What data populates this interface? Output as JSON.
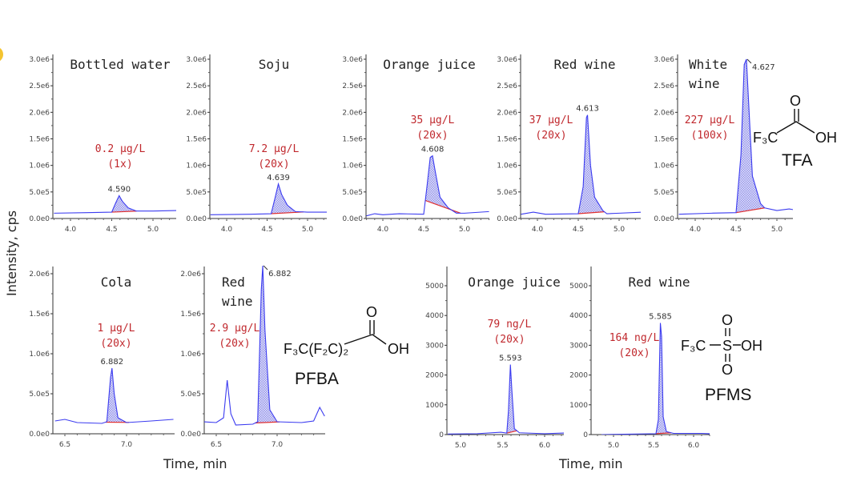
{
  "chart_data": [
    {
      "type": "line",
      "compound": "TFA",
      "title": "Bottled water",
      "concentration": "0.2 µg/L",
      "dilution": "(1x)",
      "peak_label": "4.590",
      "ylim": [
        0,
        3000000
      ],
      "yticks": [
        "0.0e0",
        "5.0e5",
        "1.0e6",
        "1.5e6",
        "2.0e6",
        "2.5e6",
        "3.0e6"
      ],
      "xticks": [
        "4.0",
        "4.5",
        "5.0"
      ],
      "trace": [
        [
          3.8,
          100000
        ],
        [
          4.2,
          110000
        ],
        [
          4.5,
          120000
        ],
        [
          4.55,
          300000
        ],
        [
          4.59,
          430000
        ],
        [
          4.63,
          320000
        ],
        [
          4.7,
          200000
        ],
        [
          4.8,
          140000
        ],
        [
          5.0,
          140000
        ],
        [
          5.3,
          150000
        ]
      ],
      "integration": [
        4.5,
        4.8
      ]
    },
    {
      "type": "line",
      "compound": "TFA",
      "title": "Soju",
      "concentration": "7.2 µg/L",
      "dilution": "(20x)",
      "peak_label": "4.639",
      "ylim": [
        0,
        3000000
      ],
      "yticks": [
        "0.0e0",
        "5.0e5",
        "1.0e6",
        "1.5e6",
        "2.0e6",
        "2.5e6",
        "3.0e6"
      ],
      "xticks": [
        "4.0",
        "4.5",
        "5.0"
      ],
      "trace": [
        [
          3.8,
          70000
        ],
        [
          4.3,
          80000
        ],
        [
          4.55,
          90000
        ],
        [
          4.6,
          400000
        ],
        [
          4.639,
          650000
        ],
        [
          4.68,
          450000
        ],
        [
          4.75,
          250000
        ],
        [
          4.85,
          130000
        ],
        [
          5.0,
          120000
        ],
        [
          5.35,
          120000
        ]
      ],
      "integration": [
        4.55,
        4.95
      ]
    },
    {
      "type": "line",
      "compound": "TFA",
      "title": "Orange juice",
      "concentration": "35 µg/L",
      "dilution": "(20x)",
      "peak_label": "4.608",
      "ylim": [
        0,
        3000000
      ],
      "yticks": [
        "0.0e0",
        "5.0e5",
        "1.0e6",
        "1.5e6",
        "2.0e6",
        "2.5e6",
        "3.0e6"
      ],
      "xticks": [
        "4.0",
        "4.5",
        "5.0"
      ],
      "trace": [
        [
          3.8,
          50000
        ],
        [
          3.9,
          90000
        ],
        [
          4.0,
          70000
        ],
        [
          4.2,
          90000
        ],
        [
          4.5,
          80000
        ],
        [
          4.54,
          600000
        ],
        [
          4.58,
          1150000
        ],
        [
          4.608,
          1180000
        ],
        [
          4.64,
          900000
        ],
        [
          4.7,
          400000
        ],
        [
          4.8,
          200000
        ],
        [
          4.9,
          100000
        ],
        [
          5.0,
          100000
        ],
        [
          5.3,
          130000
        ]
      ],
      "integration": [
        4.52,
        4.95
      ]
    },
    {
      "type": "line",
      "compound": "TFA",
      "title": "Red wine",
      "concentration": "37 µg/L",
      "dilution": "(20x)",
      "peak_label": "4.613",
      "ylim": [
        0,
        3000000
      ],
      "yticks": [
        "0.0e0",
        "5.0e5",
        "1.0e6",
        "1.5e6",
        "2.0e6",
        "2.5e6",
        "3.0e6"
      ],
      "xticks": [
        "4.0",
        "4.5",
        "5.0"
      ],
      "trace": [
        [
          3.8,
          80000
        ],
        [
          3.95,
          120000
        ],
        [
          4.1,
          80000
        ],
        [
          4.5,
          90000
        ],
        [
          4.56,
          600000
        ],
        [
          4.6,
          1900000
        ],
        [
          4.613,
          1950000
        ],
        [
          4.65,
          1000000
        ],
        [
          4.7,
          400000
        ],
        [
          4.8,
          150000
        ],
        [
          4.85,
          90000
        ],
        [
          5.0,
          100000
        ],
        [
          5.3,
          120000
        ]
      ],
      "integration": [
        4.5,
        4.82
      ]
    },
    {
      "type": "line",
      "compound": "TFA",
      "title": "White",
      "title2": "wine",
      "concentration": "227 µg/L",
      "dilution": "(100x)",
      "peak_label": "4.627",
      "ylim": [
        0,
        3000000
      ],
      "yticks": [
        "0.0e0",
        "5.0e5",
        "1.0e6",
        "1.5e6",
        "2.0e6",
        "2.5e6",
        "3.0e6"
      ],
      "xticks": [
        "4.0",
        "4.5",
        "5.0"
      ],
      "trace": [
        [
          3.8,
          80000
        ],
        [
          4.2,
          100000
        ],
        [
          4.5,
          110000
        ],
        [
          4.56,
          1200000
        ],
        [
          4.6,
          2900000
        ],
        [
          4.627,
          3000000
        ],
        [
          4.66,
          2000000
        ],
        [
          4.7,
          800000
        ],
        [
          4.8,
          280000
        ],
        [
          4.85,
          200000
        ],
        [
          5.0,
          150000
        ],
        [
          5.15,
          180000
        ],
        [
          5.3,
          140000
        ]
      ],
      "integration": [
        4.5,
        4.85
      ]
    },
    {
      "type": "line",
      "compound": "PFBA",
      "title": "Cola",
      "concentration": "1 µg/L",
      "dilution": "(20x)",
      "peak_label": "6.882",
      "ylim": [
        0,
        2000000
      ],
      "yticks": [
        "0.0e0",
        "5.0e5",
        "1.0e6",
        "1.5e6",
        "2.0e6"
      ],
      "xticks": [
        "6.5",
        "7.0"
      ],
      "trace": [
        [
          6.42,
          160000
        ],
        [
          6.5,
          180000
        ],
        [
          6.6,
          140000
        ],
        [
          6.8,
          130000
        ],
        [
          6.84,
          150000
        ],
        [
          6.87,
          700000
        ],
        [
          6.882,
          820000
        ],
        [
          6.9,
          500000
        ],
        [
          6.93,
          200000
        ],
        [
          7.0,
          140000
        ],
        [
          7.2,
          160000
        ],
        [
          7.38,
          180000
        ]
      ],
      "integration": [
        6.83,
        7.02
      ]
    },
    {
      "type": "line",
      "compound": "PFBA",
      "title": "Red",
      "title2": "wine",
      "concentration": "2.9 µg/L",
      "dilution": "(20x)",
      "peak_label": "6.882",
      "ylim": [
        0,
        2000000
      ],
      "yticks": [
        "0.0e0",
        "5.0e5",
        "1.0e6",
        "1.5e6",
        "2.0e6"
      ],
      "xticks": [
        "6.5",
        "7.0"
      ],
      "trace": [
        [
          6.4,
          150000
        ],
        [
          6.5,
          140000
        ],
        [
          6.56,
          200000
        ],
        [
          6.59,
          670000
        ],
        [
          6.62,
          250000
        ],
        [
          6.66,
          110000
        ],
        [
          6.8,
          120000
        ],
        [
          6.84,
          150000
        ],
        [
          6.87,
          1800000
        ],
        [
          6.882,
          2100000
        ],
        [
          6.9,
          1300000
        ],
        [
          6.94,
          300000
        ],
        [
          7.0,
          150000
        ],
        [
          7.2,
          140000
        ],
        [
          7.3,
          160000
        ],
        [
          7.35,
          330000
        ],
        [
          7.39,
          220000
        ]
      ],
      "integration": [
        6.82,
        7.02
      ]
    },
    {
      "type": "line",
      "compound": "PFMS",
      "title": "Orange juice",
      "concentration": "79 ng/L",
      "dilution": "(20x)",
      "peak_label": "5.593",
      "ylim": [
        0,
        5000
      ],
      "yticks": [
        "0",
        "1000",
        "2000",
        "3000",
        "4000",
        "5000"
      ],
      "xticks": [
        "5.0",
        "5.5",
        "6.0"
      ],
      "trace": [
        [
          4.85,
          20
        ],
        [
          5.2,
          30
        ],
        [
          5.48,
          80
        ],
        [
          5.55,
          50
        ],
        [
          5.57,
          800
        ],
        [
          5.593,
          2350
        ],
        [
          5.61,
          1500
        ],
        [
          5.64,
          200
        ],
        [
          5.7,
          60
        ],
        [
          6.0,
          30
        ],
        [
          6.3,
          60
        ],
        [
          6.35,
          20
        ]
      ],
      "integration": [
        5.55,
        5.67
      ]
    },
    {
      "type": "line",
      "compound": "PFMS",
      "title": "Red wine",
      "concentration": "164 ng/L",
      "dilution": "(20x)",
      "peak_label": "5.585",
      "ylim": [
        0,
        5000
      ],
      "yticks": [
        "0",
        "1000",
        "2000",
        "3000",
        "4000",
        "5000"
      ],
      "xticks": [
        "5.0",
        "5.5",
        "6.0"
      ],
      "trace": [
        [
          4.85,
          0
        ],
        [
          5.3,
          20
        ],
        [
          5.53,
          30
        ],
        [
          5.56,
          500
        ],
        [
          5.585,
          3750
        ],
        [
          5.6,
          3300
        ],
        [
          5.62,
          600
        ],
        [
          5.66,
          100
        ],
        [
          5.75,
          40
        ],
        [
          6.1,
          40
        ],
        [
          6.35,
          10
        ]
      ],
      "integration": [
        5.53,
        5.72
      ]
    }
  ],
  "axes": {
    "ylabel": "Intensity, cps",
    "xlabel": "Time, min"
  },
  "compounds": {
    "tfa": {
      "name": "TFA",
      "group": "F₃C",
      "o": "O",
      "oh": "OH"
    },
    "pfba": {
      "name": "PFBA",
      "group": "F₃C(F₂C)₂",
      "o": "O",
      "oh": "OH"
    },
    "pfms": {
      "name": "PFMS",
      "group": "F₃C",
      "s": "S",
      "o": "O",
      "oh": "OH"
    }
  },
  "colors": {
    "trace": "#3b3bf0",
    "fill": "#c8c8f4",
    "baseline": "#e03030",
    "concentration": "#c0282d"
  }
}
